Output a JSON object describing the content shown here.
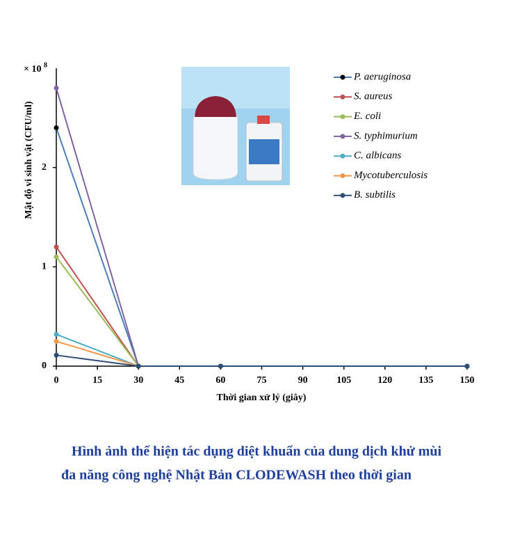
{
  "chart_data": {
    "type": "line",
    "x_label": "Thời gian xử lý (giây)",
    "y_label": "Mật độ vi sinh vật (CFU/ml)",
    "y_multiplier": {
      "base": "× 10",
      "exponent": "8"
    },
    "x": [
      0,
      30,
      60,
      150
    ],
    "xlim": [
      0,
      150
    ],
    "xticks": [
      0,
      15,
      30,
      45,
      60,
      75,
      90,
      105,
      120,
      135,
      150
    ],
    "ylim": [
      0,
      3
    ],
    "yticks": [
      0,
      1,
      2
    ],
    "legend": "top-right",
    "series": [
      {
        "name": "P. aeruginosa",
        "color": "#4a7ebb",
        "marker_color": "#000000",
        "values": [
          2.4,
          0,
          0,
          0
        ]
      },
      {
        "name": "S. aureus",
        "color": "#c0504d",
        "values": [
          1.2,
          0,
          0,
          0
        ]
      },
      {
        "name": "E. coli",
        "color": "#9bbb59",
        "values": [
          1.1,
          0,
          0,
          0
        ]
      },
      {
        "name": "S. typhimurium",
        "color": "#8064a2",
        "values": [
          2.8,
          0,
          0,
          0
        ]
      },
      {
        "name": "C. albicans",
        "color": "#4bacc6",
        "values": [
          0.32,
          0,
          0,
          0
        ]
      },
      {
        "name": "Mycotuberculosis",
        "color": "#f79646",
        "values": [
          0.25,
          0,
          0,
          0
        ]
      },
      {
        "name": "B. subtilis",
        "color": "#2c4d75",
        "values": [
          0.11,
          0,
          0,
          0
        ]
      }
    ]
  },
  "caption": [
    "Hình ảnh thể hiện tác dụng diệt khuẩn của dung dịch khử mùi",
    "đa năng công nghệ Nhật Bản CLODEWASH theo thời gian"
  ]
}
